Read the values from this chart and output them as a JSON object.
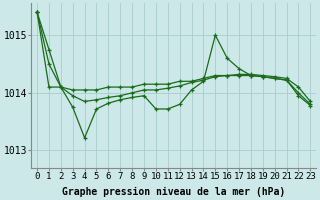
{
  "title": "Graphe pression niveau de la mer (hPa)",
  "bg_color": "#cce8e8",
  "grid_color": "#aacccc",
  "line_color": "#1a6b1a",
  "x_labels": [
    "0",
    "1",
    "2",
    "3",
    "4",
    "5",
    "6",
    "7",
    "8",
    "9",
    "10",
    "11",
    "12",
    "13",
    "14",
    "15",
    "16",
    "17",
    "18",
    "19",
    "20",
    "21",
    "22",
    "23"
  ],
  "ylim": [
    1012.7,
    1015.55
  ],
  "yticks": [
    1013,
    1014,
    1015
  ],
  "series_trend": [
    1015.4,
    1014.75,
    1014.1,
    1014.05,
    1014.05,
    1014.05,
    1014.1,
    1014.1,
    1014.1,
    1014.15,
    1014.15,
    1014.15,
    1014.2,
    1014.2,
    1014.25,
    1014.3,
    1014.3,
    1014.3,
    1014.3,
    1014.28,
    1014.25,
    1014.22,
    1014.0,
    1013.8
  ],
  "series_smooth": [
    1015.4,
    1014.5,
    1014.1,
    1013.95,
    1013.85,
    1013.88,
    1013.92,
    1013.95,
    1014.0,
    1014.05,
    1014.05,
    1014.08,
    1014.12,
    1014.18,
    1014.22,
    1014.28,
    1014.3,
    1014.32,
    1014.32,
    1014.3,
    1014.28,
    1014.25,
    1014.1,
    1013.85
  ],
  "series_zigzag": [
    1015.4,
    1014.1,
    1014.1,
    1013.75,
    1013.22,
    1013.72,
    1013.82,
    1013.88,
    1013.92,
    1013.95,
    1013.72,
    1013.72,
    1013.8,
    1014.05,
    1014.2,
    1015.0,
    1014.6,
    1014.42,
    1014.3,
    1014.28,
    1014.25,
    1014.22,
    1013.95,
    1013.78
  ],
  "xlabel_fontsize": 6.5,
  "ylabel_fontsize": 7,
  "title_fontsize": 7.0,
  "figwidth": 3.2,
  "figheight": 2.0,
  "dpi": 100
}
